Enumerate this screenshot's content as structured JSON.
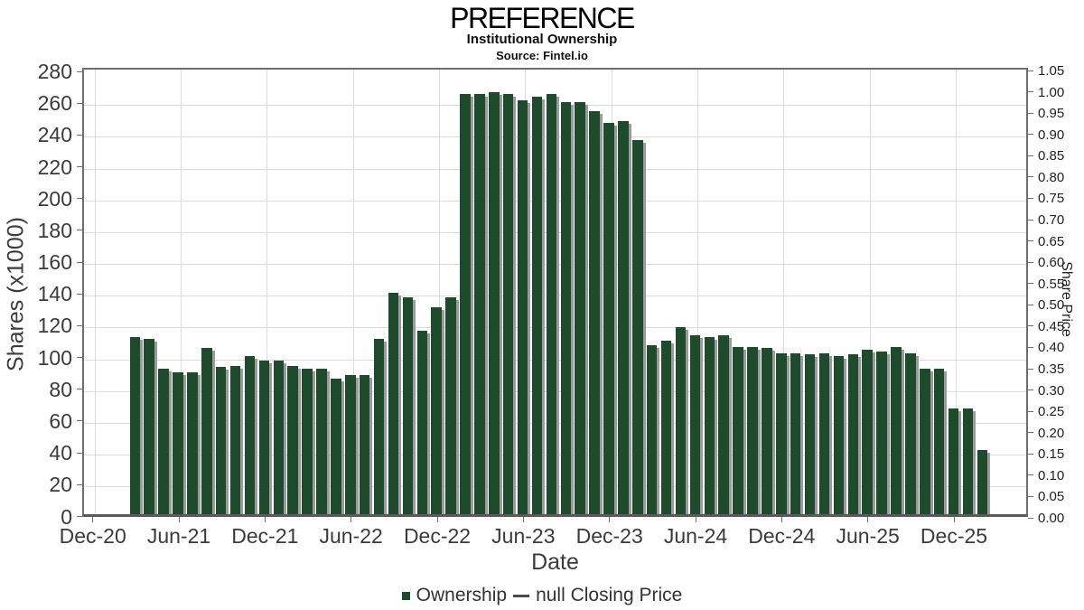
{
  "title": "PREFERENCE",
  "subtitle": "Institutional Ownership",
  "source": "Source: Fintel.io",
  "axes": {
    "y_left": {
      "label": "Shares (x1000)",
      "tick_labels": [
        "0",
        "20",
        "40",
        "60",
        "80",
        "100",
        "120",
        "140",
        "160",
        "180",
        "200",
        "220",
        "240",
        "260",
        "280"
      ]
    },
    "y_right": {
      "label": "Share Price",
      "tick_labels": [
        "0.00",
        "0.05",
        "0.10",
        "0.15",
        "0.20",
        "0.25",
        "0.30",
        "0.35",
        "0.40",
        "0.45",
        "0.50",
        "0.55",
        "0.60",
        "0.65",
        "0.70",
        "0.75",
        "0.80",
        "0.85",
        "0.90",
        "0.95",
        "1.00",
        "1.05"
      ]
    },
    "x": {
      "label": "Date",
      "tick_labels": [
        "Dec-20",
        "Jun-21",
        "Dec-21",
        "Jun-22",
        "Dec-22",
        "Jun-23",
        "Dec-23",
        "Jun-24",
        "Dec-24",
        "Jun-25",
        "Dec-25"
      ]
    }
  },
  "legend": {
    "ownership_label": "Ownership",
    "price_label": "null Closing Price"
  },
  "chart_data": {
    "type": "bar",
    "title": "PREFERENCE",
    "xlabel": "Date",
    "ylabel": "Shares (x1000)",
    "y2label": "Share Price",
    "ylim": [
      0,
      280
    ],
    "y2lim": [
      0.0,
      1.05
    ],
    "grid": true,
    "legend_position": "bottom",
    "bar_color": "#1e4b2b",
    "categories": [
      "Mar-21",
      "Apr-21",
      "May-21",
      "Jun-21",
      "Jul-21",
      "Aug-21",
      "Sep-21",
      "Oct-21",
      "Nov-21",
      "Dec-21",
      "Jan-22",
      "Feb-22",
      "Mar-22",
      "Apr-22",
      "May-22",
      "Jun-22",
      "Jul-22",
      "Aug-22",
      "Sep-22",
      "Oct-22",
      "Nov-22",
      "Dec-22",
      "Jan-23",
      "Feb-23",
      "Mar-23",
      "Apr-23",
      "May-23",
      "Jun-23",
      "Jul-23",
      "Aug-23",
      "Sep-23",
      "Oct-23",
      "Nov-23",
      "Dec-23",
      "Jan-24",
      "Feb-24",
      "Mar-24",
      "Apr-24",
      "May-24",
      "Jun-24",
      "Jul-24",
      "Aug-24",
      "Sep-24",
      "Oct-24",
      "Nov-24",
      "Dec-24",
      "Jan-25",
      "Feb-25",
      "Mar-25",
      "Apr-25",
      "May-25",
      "Jun-25",
      "Jul-25",
      "Aug-25",
      "Sep-25",
      "Oct-25",
      "Nov-25",
      "Dec-25",
      "Jan-26",
      "Feb-26"
    ],
    "series": [
      {
        "name": "Ownership",
        "values": [
          114,
          113,
          94,
          92,
          92,
          107,
          95,
          96,
          102,
          99,
          99,
          96,
          94,
          94,
          88,
          90,
          90,
          113,
          142,
          139,
          118,
          133,
          139,
          267,
          267,
          268,
          267,
          263,
          265,
          267,
          262,
          262,
          256,
          249,
          250,
          238,
          109,
          112,
          120,
          115,
          114,
          115,
          108,
          108,
          107,
          104,
          104,
          103,
          104,
          102,
          103,
          106,
          105,
          108,
          104,
          94,
          94,
          69,
          69,
          43
        ]
      },
      {
        "name": "null Closing Price",
        "values": []
      }
    ]
  }
}
